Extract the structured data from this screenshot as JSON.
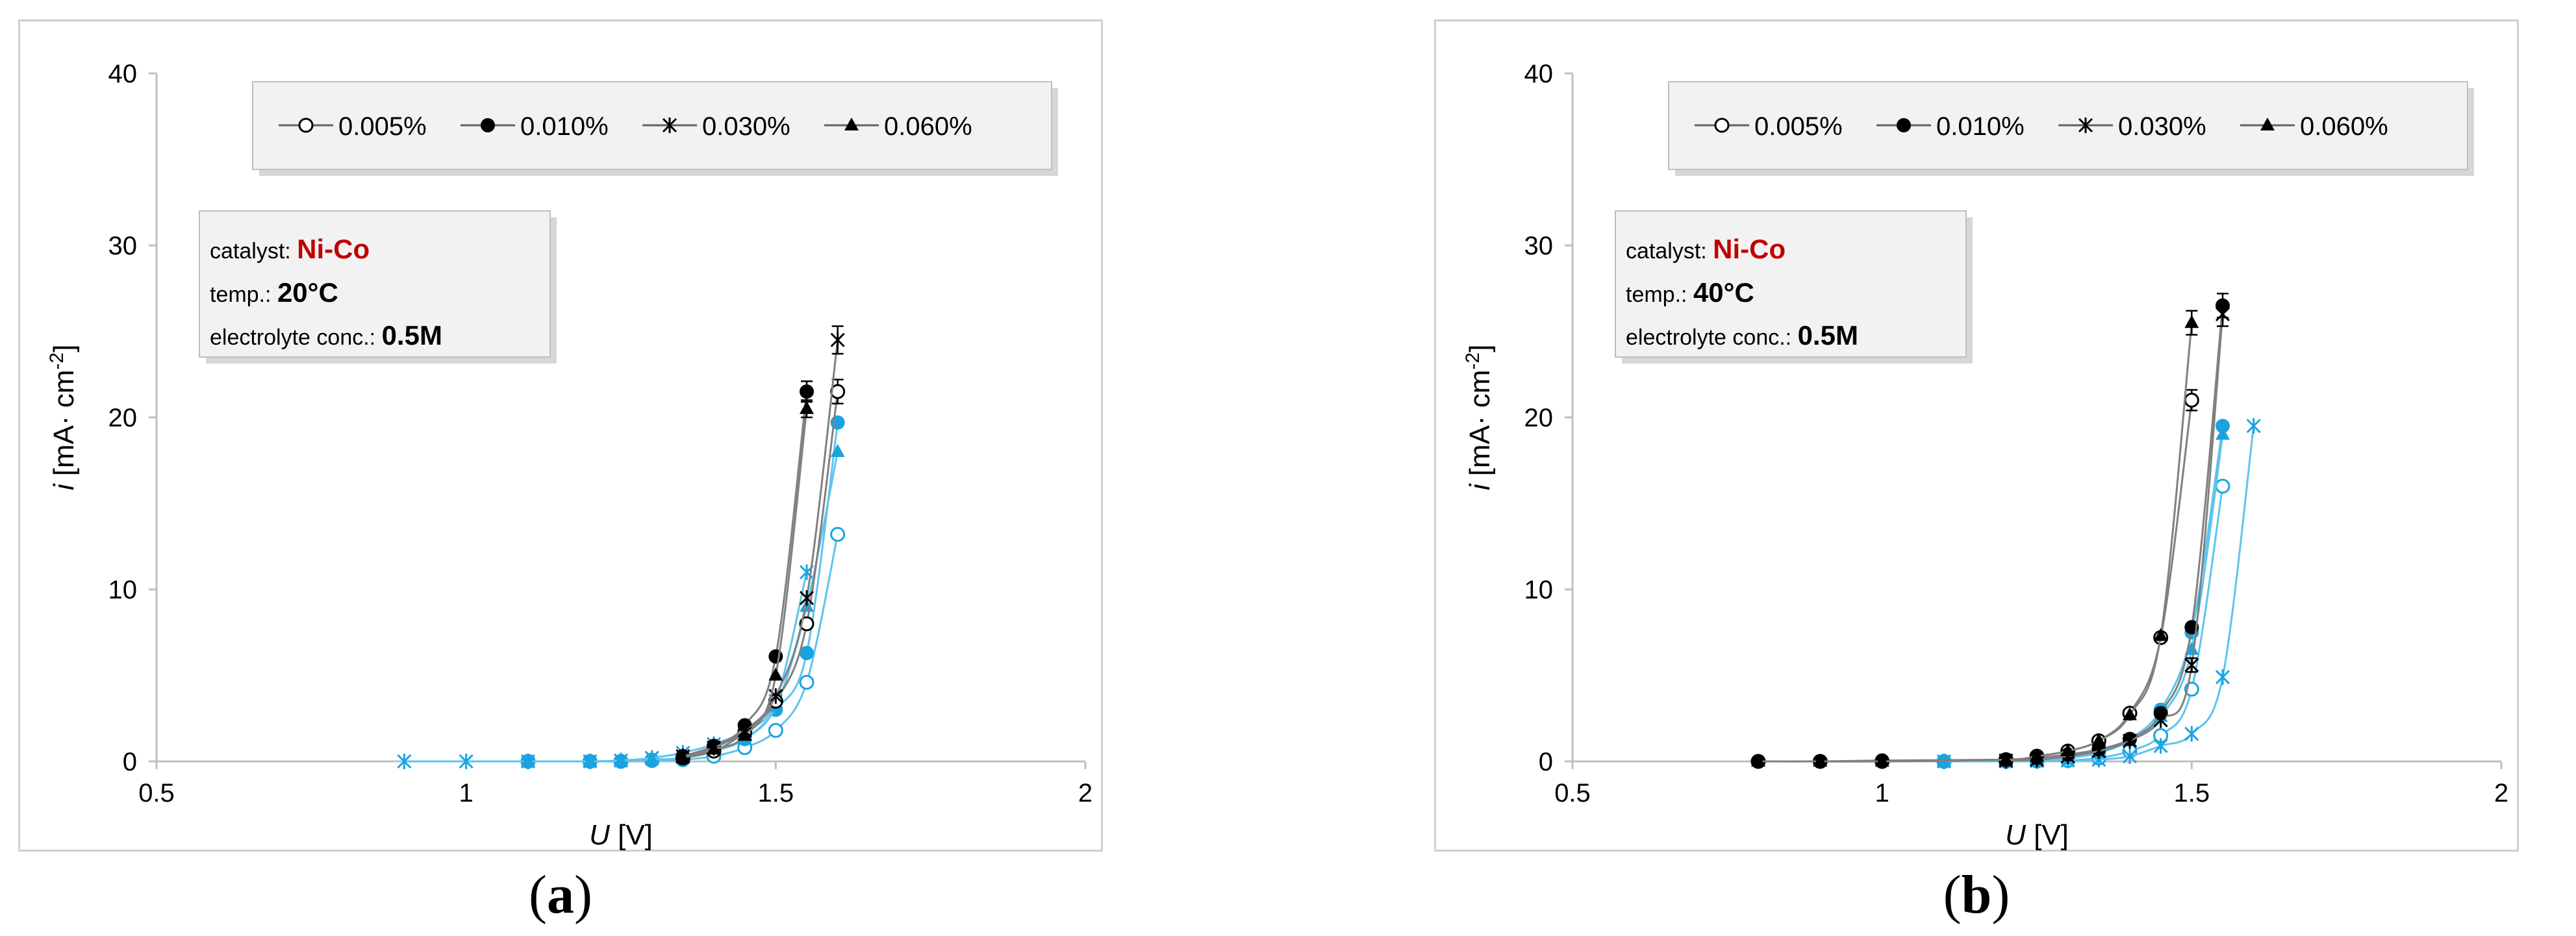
{
  "chart_data": [
    {
      "type": "scatter",
      "panel_label": "a",
      "xlabel_var": "U",
      "xlabel_unit": " [V]",
      "ylabel_var": "i",
      "ylabel_unit": " [mA· cm",
      "ylabel_sup": "-2",
      "ylabel_close": "]",
      "xlim": [
        0.5,
        2
      ],
      "ylim": [
        0,
        40
      ],
      "xticks": [
        "0.5",
        "1",
        "1.5",
        "2"
      ],
      "yticks": [
        "0",
        "10",
        "20",
        "30",
        "40"
      ],
      "legend": [
        "0.005%",
        "0.010%",
        "0.030%",
        "0.060%"
      ],
      "legend_placement": "top",
      "info": {
        "catalyst_label": "catalyst: ",
        "catalyst_value": "Ni-Co",
        "temp_label": "temp.: ",
        "temp_value": "20°C",
        "conc_label": "electrolyte conc.: ",
        "conc_value": "0.5M"
      },
      "colors": {
        "black": "#000000",
        "blue": "#1aa3e0",
        "line_black": "#808080",
        "line_blue": "#5ec3ee",
        "accent": "#c00000"
      },
      "series": [
        {
          "name": "0.005%",
          "color": "black",
          "marker": "circle-open",
          "x": [
            1.35,
            1.4,
            1.45,
            1.5,
            1.55,
            1.6
          ],
          "y": [
            0.2,
            0.6,
            1.7,
            3.5,
            8.0,
            21.5
          ],
          "err": [
            0,
            0,
            0,
            0,
            0,
            0.7
          ]
        },
        {
          "name": "0.010%",
          "color": "black",
          "marker": "circle-filled",
          "x": [
            1.35,
            1.4,
            1.45,
            1.5,
            1.55
          ],
          "y": [
            0.3,
            0.9,
            2.1,
            6.1,
            21.5
          ],
          "err": [
            0,
            0,
            0,
            0,
            0.6
          ]
        },
        {
          "name": "0.030%",
          "color": "black",
          "marker": "star",
          "x": [
            1.35,
            1.4,
            1.45,
            1.5,
            1.55,
            1.6
          ],
          "y": [
            0.3,
            0.8,
            1.8,
            3.8,
            9.5,
            24.5
          ],
          "err": [
            0,
            0,
            0,
            0,
            0,
            0.8
          ]
        },
        {
          "name": "0.060%",
          "color": "black",
          "marker": "triangle",
          "x": [
            1.35,
            1.4,
            1.45,
            1.5,
            1.55
          ],
          "y": [
            0.2,
            0.7,
            1.5,
            5.0,
            20.5
          ],
          "err": [
            0,
            0,
            0,
            0,
            0.5
          ]
        },
        {
          "name": "0.005%",
          "color": "blue",
          "marker": "circle-open",
          "x": [
            1.1,
            1.2,
            1.25,
            1.3,
            1.35,
            1.4,
            1.45,
            1.5,
            1.55,
            1.6
          ],
          "y": [
            0,
            0,
            0,
            0.05,
            0.1,
            0.3,
            0.8,
            1.8,
            4.6,
            13.2
          ],
          "err": []
        },
        {
          "name": "0.010%",
          "color": "blue",
          "marker": "circle-filled",
          "x": [
            1.1,
            1.2,
            1.25,
            1.3,
            1.35,
            1.4,
            1.45,
            1.5,
            1.55,
            1.6
          ],
          "y": [
            0,
            0,
            0.02,
            0.1,
            0.2,
            0.6,
            1.3,
            3.0,
            6.3,
            19.7
          ],
          "err": []
        },
        {
          "name": "0.030%",
          "color": "blue",
          "marker": "star",
          "x": [
            0.9,
            1.0,
            1.1,
            1.2,
            1.25,
            1.3,
            1.35,
            1.4,
            1.45,
            1.5,
            1.55
          ],
          "y": [
            0,
            0,
            0,
            0,
            0.05,
            0.2,
            0.5,
            1.0,
            1.8,
            3.5,
            11.0
          ],
          "err": []
        },
        {
          "name": "0.060%",
          "color": "blue",
          "marker": "triangle",
          "x": [
            1.1,
            1.2,
            1.25,
            1.3,
            1.35,
            1.4,
            1.45,
            1.5,
            1.55,
            1.6
          ],
          "y": [
            0,
            0,
            0.02,
            0.1,
            0.2,
            0.6,
            1.3,
            3.2,
            9.0,
            18.0
          ],
          "err": []
        }
      ]
    },
    {
      "type": "scatter",
      "panel_label": "b",
      "xlabel_var": "U",
      "xlabel_unit": " [V]",
      "ylabel_var": "i",
      "ylabel_unit": " [mA· cm",
      "ylabel_sup": "-2",
      "ylabel_close": "]",
      "xlim": [
        0.5,
        2
      ],
      "ylim": [
        0,
        40
      ],
      "xticks": [
        "0.5",
        "1",
        "1.5",
        "2"
      ],
      "yticks": [
        "0",
        "10",
        "20",
        "30",
        "40"
      ],
      "legend": [
        "0.005%",
        "0.010%",
        "0.030%",
        "0.060%"
      ],
      "legend_placement": "top",
      "info": {
        "catalyst_label": "catalyst: ",
        "catalyst_value": "Ni-Co",
        "temp_label": "temp.: ",
        "temp_value": "40°C",
        "conc_label": "electrolyte conc.: ",
        "conc_value": "0.5M"
      },
      "colors": {
        "black": "#000000",
        "blue": "#1aa3e0",
        "line_black": "#808080",
        "line_blue": "#5ec3ee",
        "accent": "#c00000"
      },
      "series": [
        {
          "name": "0.005%",
          "color": "black",
          "marker": "circle-open",
          "x": [
            0.8,
            0.9,
            1.0,
            1.2,
            1.25,
            1.3,
            1.35,
            1.4,
            1.45,
            1.5
          ],
          "y": [
            0,
            0,
            0,
            0.1,
            0.3,
            0.6,
            1.2,
            2.8,
            7.2,
            21.0
          ],
          "err": [
            0,
            0,
            0,
            0,
            0,
            0,
            0,
            0,
            0,
            0.6
          ]
        },
        {
          "name": "0.010%",
          "color": "black",
          "marker": "circle-filled",
          "x": [
            0.8,
            0.9,
            1.0,
            1.2,
            1.25,
            1.3,
            1.35,
            1.4,
            1.45,
            1.5,
            1.55
          ],
          "y": [
            0,
            0,
            0.05,
            0.1,
            0.2,
            0.4,
            0.7,
            1.3,
            2.8,
            7.8,
            26.5
          ],
          "err": [
            0,
            0,
            0,
            0,
            0,
            0,
            0,
            0,
            0,
            0,
            0.7
          ]
        },
        {
          "name": "0.030%",
          "color": "black",
          "marker": "star",
          "x": [
            1.2,
            1.25,
            1.3,
            1.35,
            1.4,
            1.45,
            1.5,
            1.55
          ],
          "y": [
            0.05,
            0.1,
            0.3,
            0.6,
            1.2,
            2.4,
            5.6,
            26.0
          ],
          "err": [
            0,
            0,
            0,
            0,
            0,
            0,
            0.4,
            0.7
          ]
        },
        {
          "name": "0.060%",
          "color": "black",
          "marker": "triangle",
          "x": [
            0.8,
            0.9,
            1.0,
            1.2,
            1.25,
            1.3,
            1.35,
            1.4,
            1.45,
            1.5
          ],
          "y": [
            0,
            0,
            0,
            0.1,
            0.3,
            0.6,
            1.2,
            2.7,
            7.3,
            25.5
          ],
          "err": [
            0,
            0,
            0,
            0,
            0,
            0,
            0,
            0,
            0,
            0.7
          ]
        },
        {
          "name": "0.005%",
          "color": "blue",
          "marker": "circle-open",
          "x": [
            1.1,
            1.2,
            1.25,
            1.3,
            1.35,
            1.4,
            1.45,
            1.5,
            1.55
          ],
          "y": [
            0,
            0,
            0.02,
            0.05,
            0.2,
            0.6,
            1.5,
            4.2,
            16.0
          ],
          "err": []
        },
        {
          "name": "0.010%",
          "color": "blue",
          "marker": "circle-filled",
          "x": [
            1.1,
            1.2,
            1.25,
            1.3,
            1.35,
            1.4,
            1.45,
            1.5,
            1.55
          ],
          "y": [
            0,
            0.02,
            0.05,
            0.2,
            0.5,
            1.3,
            3.0,
            7.5,
            19.5
          ],
          "err": []
        },
        {
          "name": "0.030%",
          "color": "blue",
          "marker": "star",
          "x": [
            1.1,
            1.2,
            1.25,
            1.3,
            1.35,
            1.4,
            1.45,
            1.5,
            1.55,
            1.6
          ],
          "y": [
            0,
            0,
            0.02,
            0.05,
            0.1,
            0.3,
            0.9,
            1.6,
            4.9,
            19.5
          ],
          "err": []
        },
        {
          "name": "0.060%",
          "color": "blue",
          "marker": "triangle",
          "x": [
            1.1,
            1.2,
            1.25,
            1.3,
            1.35,
            1.4,
            1.45,
            1.5,
            1.55
          ],
          "y": [
            0,
            0.02,
            0.05,
            0.2,
            0.5,
            1.2,
            2.6,
            6.5,
            19.0
          ],
          "err": []
        }
      ]
    }
  ]
}
